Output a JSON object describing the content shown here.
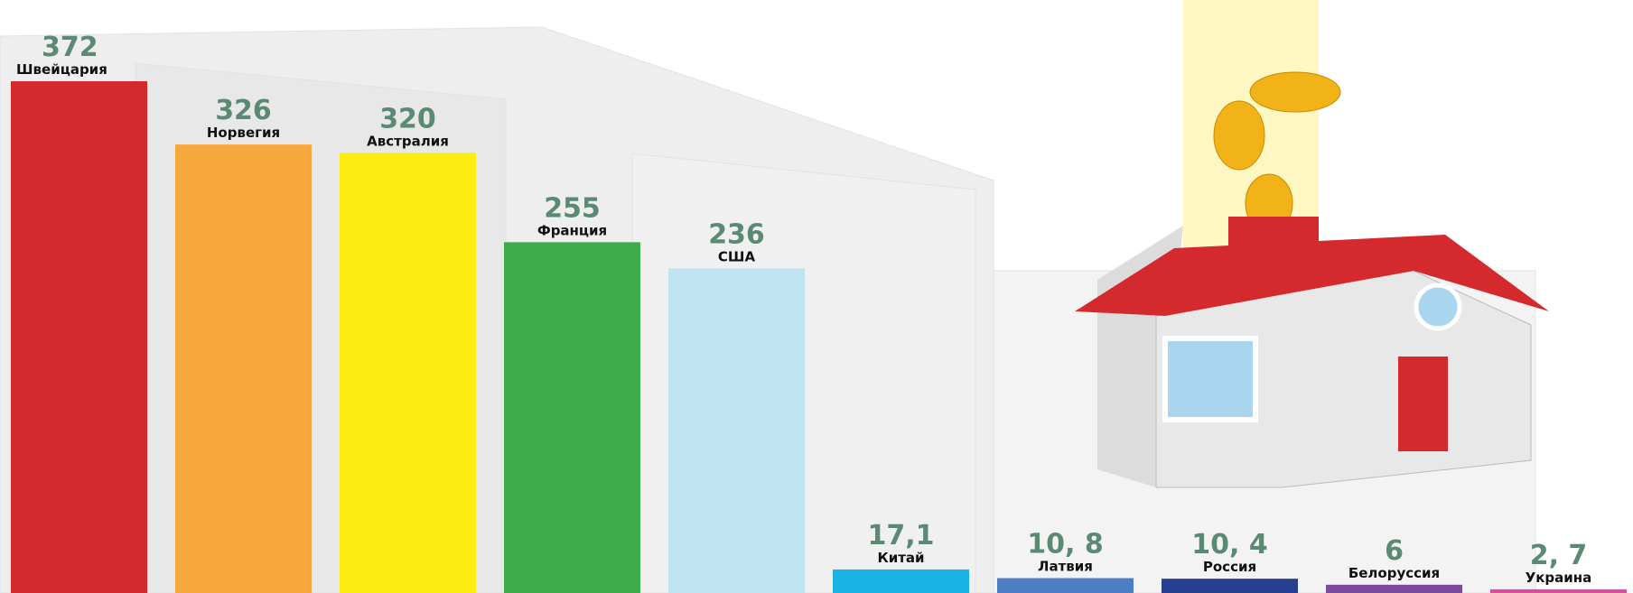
{
  "chart_data": {
    "type": "bar",
    "categories": [
      "Швейцария",
      "Норвегия",
      "Австралия",
      "Франция",
      "США",
      "Китай",
      "Латвия",
      "Россия",
      "Белоруссия",
      "Украина"
    ],
    "values": [
      372,
      326,
      320,
      255,
      236,
      17.1,
      10.8,
      10.4,
      6,
      2.7
    ],
    "value_labels": [
      "372",
      "326",
      "320",
      "255",
      "236",
      "17,1",
      "10, 8",
      "10, 4",
      "6",
      "2, 7"
    ],
    "colors": [
      "#d42a2e",
      "#f7a83c",
      "#fdec0f",
      "#3fac4b",
      "#bfe3f0",
      "#1bb3e3",
      "#4d7fc4",
      "#273f91",
      "#7a4b9e",
      "#d94e9e"
    ]
  }
}
